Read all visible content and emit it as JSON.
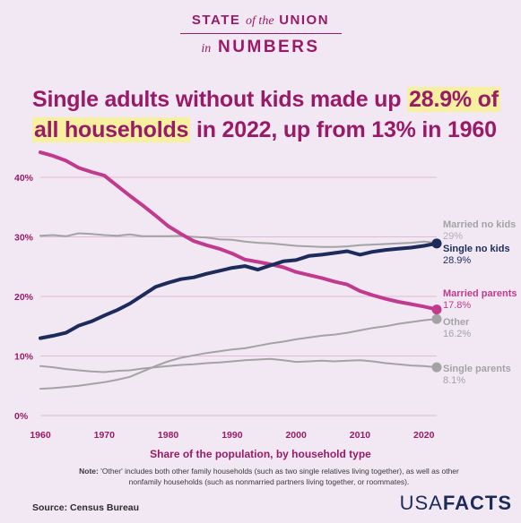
{
  "brand": {
    "line1_a": "STATE",
    "line1_it": "of the",
    "line1_b": "UNION",
    "line2_it": "in",
    "line2_b": "NUMBERS"
  },
  "headline": {
    "part1": "Single adults without kids made up ",
    "highlight1": "28.9% of",
    "highlight2": "all households",
    "part2": " in 2022, up from 13% in 1960"
  },
  "chart_data": {
    "type": "line",
    "xlabel": "Share of the population, by household type",
    "ylabel": "",
    "xlim": [
      1960,
      2022
    ],
    "ylim": [
      0,
      42
    ],
    "x_ticks": [
      "1960",
      "1970",
      "1980",
      "1990",
      "2000",
      "2010",
      "2020"
    ],
    "y_ticks": [
      "0%",
      "10%",
      "20%",
      "30%",
      "40%"
    ],
    "grid": "horizontal",
    "legend": "end-of-line labels, right",
    "series": [
      {
        "name": "Married parents",
        "end_label": "17.8%",
        "color": "#c23a8c",
        "x": [
          1960,
          1962,
          1964,
          1966,
          1968,
          1970,
          1972,
          1974,
          1976,
          1978,
          1980,
          1982,
          1984,
          1986,
          1988,
          1990,
          1992,
          1994,
          1996,
          1998,
          2000,
          2002,
          2004,
          2006,
          2008,
          2010,
          2012,
          2014,
          2016,
          2018,
          2020,
          2022
        ],
        "y": [
          44.2,
          43.6,
          42.8,
          41.6,
          40.9,
          40.3,
          38.6,
          36.9,
          35.3,
          33.6,
          31.8,
          30.5,
          29.3,
          28.6,
          28.0,
          27.2,
          26.2,
          25.8,
          25.4,
          24.9,
          24.1,
          23.6,
          23.1,
          22.5,
          22.0,
          20.9,
          20.2,
          19.6,
          19.1,
          18.7,
          18.3,
          17.8
        ]
      },
      {
        "name": "Single no kids",
        "end_label": "28.9%",
        "color": "#1c2b5a",
        "x": [
          1960,
          1962,
          1964,
          1966,
          1968,
          1970,
          1972,
          1974,
          1976,
          1978,
          1980,
          1982,
          1984,
          1986,
          1988,
          1990,
          1992,
          1994,
          1996,
          1998,
          2000,
          2002,
          2004,
          2006,
          2008,
          2010,
          2012,
          2014,
          2016,
          2018,
          2020,
          2022
        ],
        "y": [
          13.0,
          13.4,
          13.9,
          15.1,
          15.8,
          16.8,
          17.7,
          18.8,
          20.2,
          21.6,
          22.3,
          22.9,
          23.2,
          23.8,
          24.3,
          24.8,
          25.1,
          24.5,
          25.2,
          25.9,
          26.1,
          26.8,
          27.0,
          27.3,
          27.6,
          27.0,
          27.5,
          27.8,
          28.0,
          28.2,
          28.5,
          28.9
        ]
      },
      {
        "name": "Married no kids",
        "end_label": "29%",
        "color": "#a3a3a3",
        "x": [
          1960,
          1962,
          1964,
          1966,
          1968,
          1970,
          1972,
          1974,
          1976,
          1978,
          1980,
          1982,
          1984,
          1986,
          1988,
          1990,
          1992,
          1994,
          1996,
          1998,
          2000,
          2002,
          2004,
          2006,
          2008,
          2010,
          2012,
          2014,
          2016,
          2018,
          2020,
          2022
        ],
        "y": [
          30.2,
          30.3,
          30.1,
          30.6,
          30.5,
          30.3,
          30.2,
          30.4,
          30.1,
          30.1,
          30.1,
          30.2,
          30.0,
          29.9,
          29.6,
          29.5,
          29.2,
          29.0,
          28.9,
          28.7,
          28.5,
          28.4,
          28.3,
          28.3,
          28.4,
          28.6,
          28.7,
          28.8,
          28.9,
          29.0,
          29.2,
          29.0
        ]
      },
      {
        "name": "Other",
        "end_label": "16.2%",
        "color": "#a3a3a3",
        "x": [
          1960,
          1962,
          1964,
          1966,
          1968,
          1970,
          1972,
          1974,
          1976,
          1978,
          1980,
          1982,
          1984,
          1986,
          1988,
          1990,
          1992,
          1994,
          1996,
          1998,
          2000,
          2002,
          2004,
          2006,
          2008,
          2010,
          2012,
          2014,
          2016,
          2018,
          2020,
          2022
        ],
        "y": [
          4.5,
          4.6,
          4.8,
          5.0,
          5.3,
          5.6,
          6.0,
          6.5,
          7.4,
          8.3,
          9.1,
          9.7,
          10.1,
          10.5,
          10.8,
          11.1,
          11.3,
          11.7,
          12.1,
          12.4,
          12.8,
          13.1,
          13.4,
          13.6,
          13.9,
          14.3,
          14.7,
          15.0,
          15.4,
          15.7,
          16.0,
          16.2
        ]
      },
      {
        "name": "Single parents",
        "end_label": "8.1%",
        "color": "#a3a3a3",
        "x": [
          1960,
          1962,
          1964,
          1966,
          1968,
          1970,
          1972,
          1974,
          1976,
          1978,
          1980,
          1982,
          1984,
          1986,
          1988,
          1990,
          1992,
          1994,
          1996,
          1998,
          2000,
          2002,
          2004,
          2006,
          2008,
          2010,
          2012,
          2014,
          2016,
          2018,
          2020,
          2022
        ],
        "y": [
          8.3,
          8.1,
          7.8,
          7.6,
          7.4,
          7.3,
          7.5,
          7.6,
          7.9,
          8.1,
          8.3,
          8.5,
          8.6,
          8.8,
          8.9,
          9.1,
          9.3,
          9.4,
          9.5,
          9.3,
          9.0,
          9.1,
          9.2,
          9.1,
          9.2,
          9.3,
          9.1,
          8.8,
          8.6,
          8.4,
          8.3,
          8.1
        ]
      }
    ]
  },
  "note": {
    "label": "Note:",
    "text": " 'Other' includes both other family households (such as two single relatives living together), as well as other nonfamily households (such as nonmarried partners living together, or roommates)."
  },
  "source": "Source: Census Bureau",
  "logo": {
    "a": "USA",
    "b": "FACTS"
  },
  "colors": {
    "magenta": "#9b1a67",
    "married_parents": "#c23a8c",
    "single_no_kids": "#1c2b5a",
    "gray": "#a3a3a3",
    "highlight": "#f7f0a0",
    "background": "#f1e8f4"
  }
}
